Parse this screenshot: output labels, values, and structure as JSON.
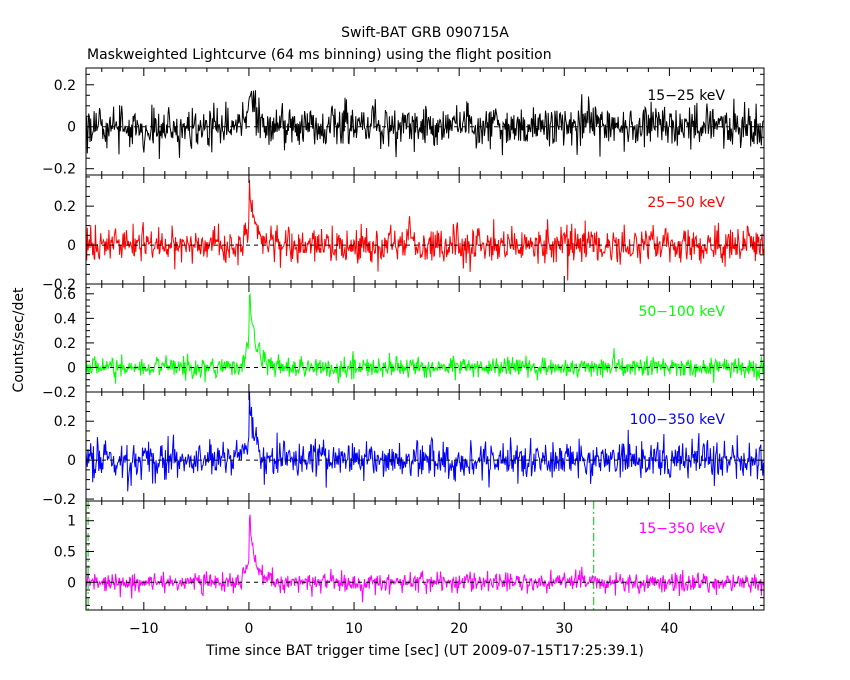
{
  "chart_data": {
    "type": "line",
    "title": "Swift-BAT GRB 090715A",
    "subtitle": "Maskweighted Lightcurve (64 ms binning) using the flight position",
    "xlabel": "Time since BAT trigger time [sec] (UT 2009-07-15T17:25:39.1)",
    "ylabel": "Counts/sec/det",
    "xlim": [
      -15.5,
      49
    ],
    "xticks": [
      -10,
      0,
      10,
      20,
      30,
      40
    ],
    "xtick_labels": [
      "−10",
      "0",
      "10",
      "20",
      "30",
      "40"
    ],
    "grid": false,
    "bin_width_sec": 0.064,
    "panels": [
      {
        "band": "15−25 keV",
        "color": "#000000",
        "ylim": [
          -0.23,
          0.28
        ],
        "yticks": [
          -0.2,
          0,
          0.2
        ],
        "ytick_labels": [
          "−0.2",
          "0",
          "0.2"
        ],
        "noise_sigma": 0.05,
        "peaks": [
          {
            "x": 0.0,
            "height": 0.24
          }
        ]
      },
      {
        "band": "25−50 keV",
        "color": "#ff0000",
        "ylim": [
          -0.2,
          0.36
        ],
        "yticks": [
          -0.2,
          0,
          0.2
        ],
        "ytick_labels": [
          "−0.2",
          "0",
          "0.2"
        ],
        "noise_sigma": 0.048,
        "peaks": [
          {
            "x": 0.0,
            "height": 0.32
          }
        ]
      },
      {
        "band": "50−100 keV",
        "color": "#00ff00",
        "ylim": [
          -0.2,
          0.68
        ],
        "yticks": [
          -0.2,
          0,
          0.2,
          0.4,
          0.6
        ],
        "ytick_labels": [
          "−0.2",
          "0",
          "0.2",
          "0.4",
          "0.6"
        ],
        "noise_sigma": 0.042,
        "peaks": [
          {
            "x": 0.0,
            "height": 0.65
          }
        ]
      },
      {
        "band": "100−350 keV",
        "color": "#0000ff",
        "ylim": [
          -0.21,
          0.35
        ],
        "yticks": [
          -0.2,
          0,
          0.2
        ],
        "ytick_labels": [
          "−0.2",
          "0",
          "0.2"
        ],
        "noise_sigma": 0.048,
        "peaks": [
          {
            "x": 0.0,
            "height": 0.32
          }
        ]
      },
      {
        "band": "15−350 keV",
        "color": "#ff00ff",
        "ylim": [
          -0.45,
          1.32
        ],
        "yticks": [
          0,
          0.5,
          1
        ],
        "ytick_labels": [
          "0",
          "0.5",
          "1"
        ],
        "noise_sigma": 0.08,
        "peaks": [
          {
            "x": 0.0,
            "height": 1.2
          }
        ],
        "markers": [
          {
            "x": -15.3,
            "color": "#00cc00",
            "style": "dash-dot"
          },
          {
            "x": 32.8,
            "color": "#00cc00",
            "style": "dash-dot"
          }
        ]
      }
    ]
  }
}
